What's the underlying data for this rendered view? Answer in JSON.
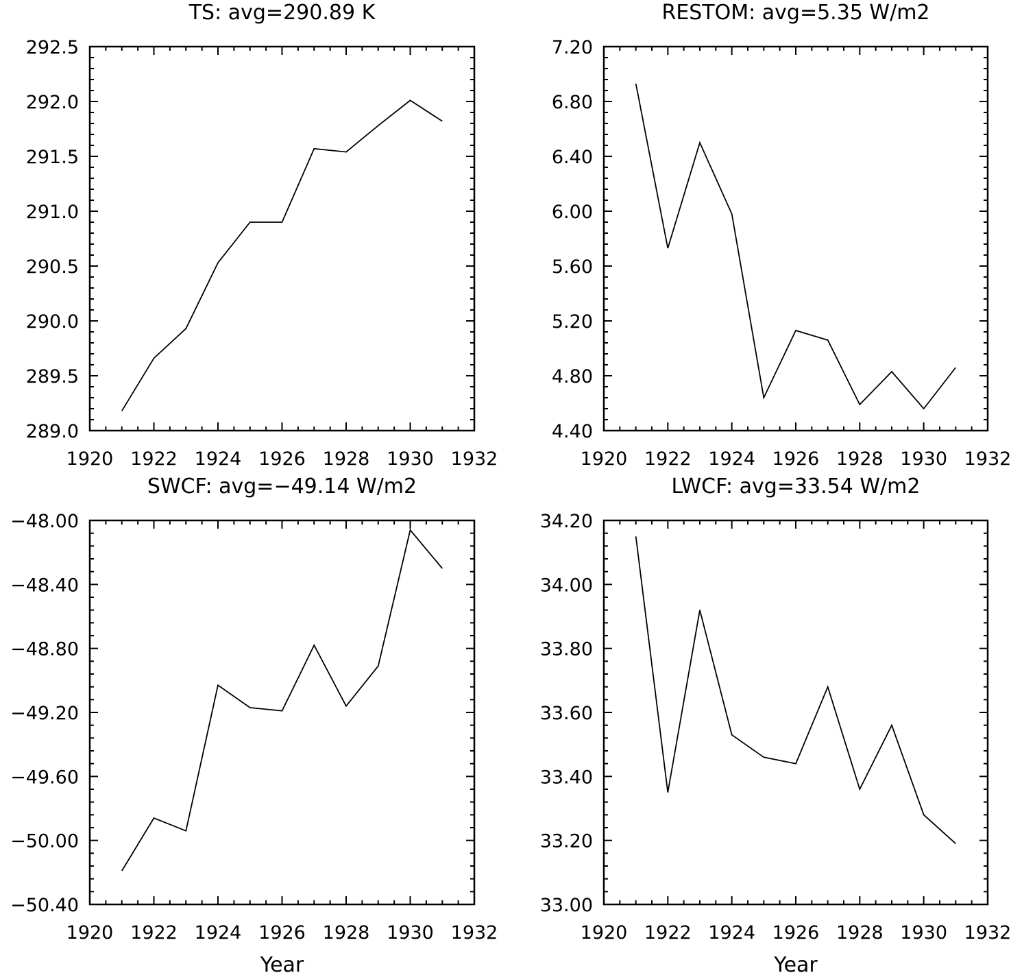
{
  "colors": {
    "background": "#ffffff",
    "ink": "#000000"
  },
  "chart_data": [
    {
      "type": "line",
      "title": "TS: avg=290.89 K",
      "xlabel": "",
      "ylabel": "",
      "xlim": [
        1920,
        1932
      ],
      "ylim": [
        289.0,
        292.5
      ],
      "xticks": [
        "1920",
        "1922",
        "1924",
        "1926",
        "1928",
        "1930",
        "1932"
      ],
      "yticks": [
        "289.0",
        "289.5",
        "290.0",
        "290.5",
        "291.0",
        "291.5",
        "292.0",
        "292.5"
      ],
      "x": [
        1921,
        1922,
        1923,
        1924,
        1925,
        1926,
        1927,
        1928,
        1929,
        1930,
        1931
      ],
      "series": [
        {
          "values": [
            289.18,
            289.66,
            289.93,
            290.53,
            290.9,
            290.9,
            291.57,
            291.54,
            291.78,
            292.01,
            291.82
          ]
        }
      ],
      "grid": false,
      "legend": "none"
    },
    {
      "type": "line",
      "title": "RESTOM: avg=5.35 W/m2",
      "xlabel": "",
      "ylabel": "",
      "xlim": [
        1920,
        1932
      ],
      "ylim": [
        4.4,
        7.2
      ],
      "xticks": [
        "1920",
        "1922",
        "1924",
        "1926",
        "1928",
        "1930",
        "1932"
      ],
      "yticks": [
        "4.40",
        "4.80",
        "5.20",
        "5.60",
        "6.00",
        "6.40",
        "6.80",
        "7.20"
      ],
      "x": [
        1921,
        1922,
        1923,
        1924,
        1925,
        1926,
        1927,
        1928,
        1929,
        1930,
        1931
      ],
      "series": [
        {
          "values": [
            6.93,
            5.73,
            6.5,
            5.98,
            4.64,
            5.13,
            5.06,
            4.59,
            4.83,
            4.56,
            4.86
          ]
        }
      ],
      "grid": false,
      "legend": "none"
    },
    {
      "type": "line",
      "title": "SWCF: avg=−49.14 W/m2",
      "xlabel": "Year",
      "ylabel": "",
      "xlim": [
        1920,
        1932
      ],
      "ylim": [
        -50.4,
        -48.0
      ],
      "xticks": [
        "1920",
        "1922",
        "1924",
        "1926",
        "1928",
        "1930",
        "1932"
      ],
      "yticks": [
        "−50.40",
        "−50.00",
        "−49.60",
        "−49.20",
        "−48.80",
        "−48.40",
        "−48.00"
      ],
      "x": [
        1921,
        1922,
        1923,
        1924,
        1925,
        1926,
        1927,
        1928,
        1929,
        1930,
        1931
      ],
      "series": [
        {
          "values": [
            -50.19,
            -49.86,
            -49.94,
            -49.03,
            -49.17,
            -49.19,
            -48.78,
            -49.16,
            -48.91,
            -48.06,
            -48.3
          ]
        }
      ],
      "grid": false,
      "legend": "none"
    },
    {
      "type": "line",
      "title": "LWCF: avg=33.54 W/m2",
      "xlabel": "Year",
      "ylabel": "",
      "xlim": [
        1920,
        1932
      ],
      "ylim": [
        33.0,
        34.2
      ],
      "xticks": [
        "1920",
        "1922",
        "1924",
        "1926",
        "1928",
        "1930",
        "1932"
      ],
      "yticks": [
        "33.00",
        "33.20",
        "33.40",
        "33.60",
        "33.80",
        "34.00",
        "34.20"
      ],
      "x": [
        1921,
        1922,
        1923,
        1924,
        1925,
        1926,
        1927,
        1928,
        1929,
        1930,
        1931
      ],
      "series": [
        {
          "values": [
            34.15,
            33.35,
            33.92,
            33.53,
            33.46,
            33.44,
            33.68,
            33.36,
            33.56,
            33.28,
            33.19
          ]
        }
      ],
      "grid": false,
      "legend": "none"
    }
  ]
}
